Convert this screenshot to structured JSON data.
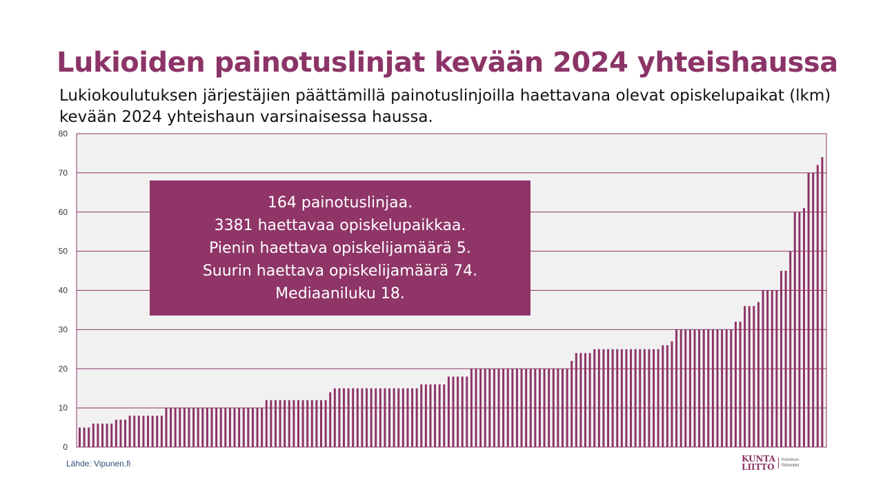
{
  "title": "Lukioiden painotuslinjat kevään 2024 yhteishaussa",
  "subtitle": "Lukiokoulutuksen järjestäjien päättämillä painotuslinjoilla haettavana olevat opiskelupaikat (lkm) kevään 2024 yhteishaun varsinaisessa haussa.",
  "infobox": [
    "164 painotuslinjaa.",
    "3381 haettavaa opiskelupaikkaa.",
    "Pienin haettava opiskelijamäärä 5.",
    "Suurin haettava opiskelijamäärä 74.",
    "Mediaaniluku 18."
  ],
  "source": "Lähde: Vipunen.fi",
  "logo": {
    "line1": "KUNTA",
    "line2": "LIITTO",
    "side1": "Kommun-",
    "side2": "förbundet"
  },
  "colors": {
    "bar": "#8c3467",
    "plot_bg": "#f2f1f2",
    "box": "#8f3567"
  },
  "chart_data": {
    "type": "bar",
    "title": "Lukioiden painotuslinjat kevään 2024 yhteishaussa",
    "xlabel": "",
    "ylabel": "",
    "ylim": [
      0,
      80
    ],
    "yticks": [
      "0",
      "10",
      "20",
      "30",
      "40",
      "50",
      "60",
      "70",
      "80"
    ],
    "grid": true,
    "sorted": "ascending",
    "runs": [
      [
        5,
        3
      ],
      [
        6,
        5
      ],
      [
        7,
        3
      ],
      [
        8,
        8
      ],
      [
        10,
        22
      ],
      [
        12,
        14
      ],
      [
        14,
        1
      ],
      [
        15,
        19
      ],
      [
        16,
        6
      ],
      [
        18,
        5
      ],
      [
        20,
        22
      ],
      [
        22,
        1
      ],
      [
        24,
        4
      ],
      [
        25,
        15
      ],
      [
        26,
        2
      ],
      [
        27,
        1
      ],
      [
        30,
        13
      ],
      [
        32,
        2
      ],
      [
        36,
        3
      ],
      [
        37,
        1
      ],
      [
        40,
        4
      ],
      [
        45,
        2
      ],
      [
        50,
        1
      ],
      [
        60,
        2
      ],
      [
        61,
        1
      ],
      [
        70,
        2
      ],
      [
        72,
        1
      ],
      [
        74,
        1
      ]
    ]
  }
}
